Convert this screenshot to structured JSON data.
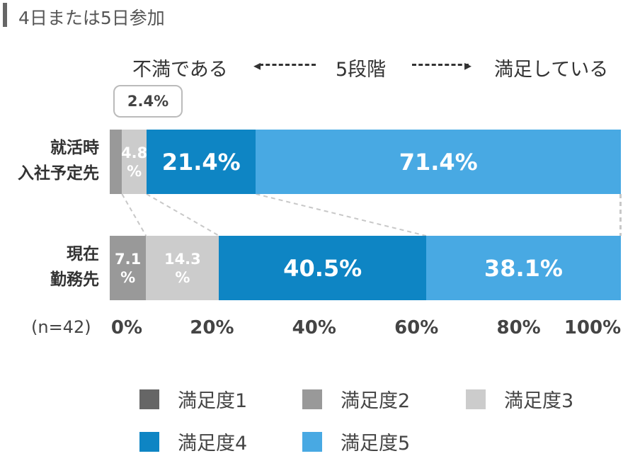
{
  "title": "4日または5日参加",
  "scale": {
    "left": "不満である",
    "middle": "5段階",
    "right": "満足している"
  },
  "colors": {
    "level1": "#666666",
    "level2": "#999999",
    "level3": "#cccccc",
    "level4": "#0e85c4",
    "level5": "#48a9e3"
  },
  "chart_data": {
    "type": "bar",
    "orientation": "horizontal-stacked-100",
    "sample_size": "(n=42)",
    "categories": [
      "就活時\n入社予定先",
      "現在\n勤務先"
    ],
    "category_lines": [
      [
        "就活時",
        "入社予定先"
      ],
      [
        "現在",
        "勤務先"
      ]
    ],
    "series": [
      {
        "name": "満足度1",
        "values": [
          0,
          0
        ]
      },
      {
        "name": "満足度2",
        "values": [
          2.4,
          7.1
        ]
      },
      {
        "name": "満足度3",
        "values": [
          4.8,
          14.3
        ]
      },
      {
        "name": "満足度4",
        "values": [
          21.4,
          40.5
        ]
      },
      {
        "name": "満足度5",
        "values": [
          71.4,
          38.1
        ]
      }
    ],
    "value_labels": [
      [
        "",
        "",
        "4.8\n%",
        "21.4%",
        "71.4%"
      ],
      [
        "",
        "7.1\n%",
        "14.3\n%",
        "40.5%",
        "38.1%"
      ]
    ],
    "callout_label": "2.4%",
    "xlim": [
      0,
      100
    ],
    "xticks": [
      "0%",
      "20%",
      "40%",
      "60%",
      "80%",
      "100%"
    ],
    "legend": [
      "満足度1",
      "満足度2",
      "満足度3",
      "満足度4",
      "満足度5"
    ],
    "legend_position": "bottom"
  }
}
